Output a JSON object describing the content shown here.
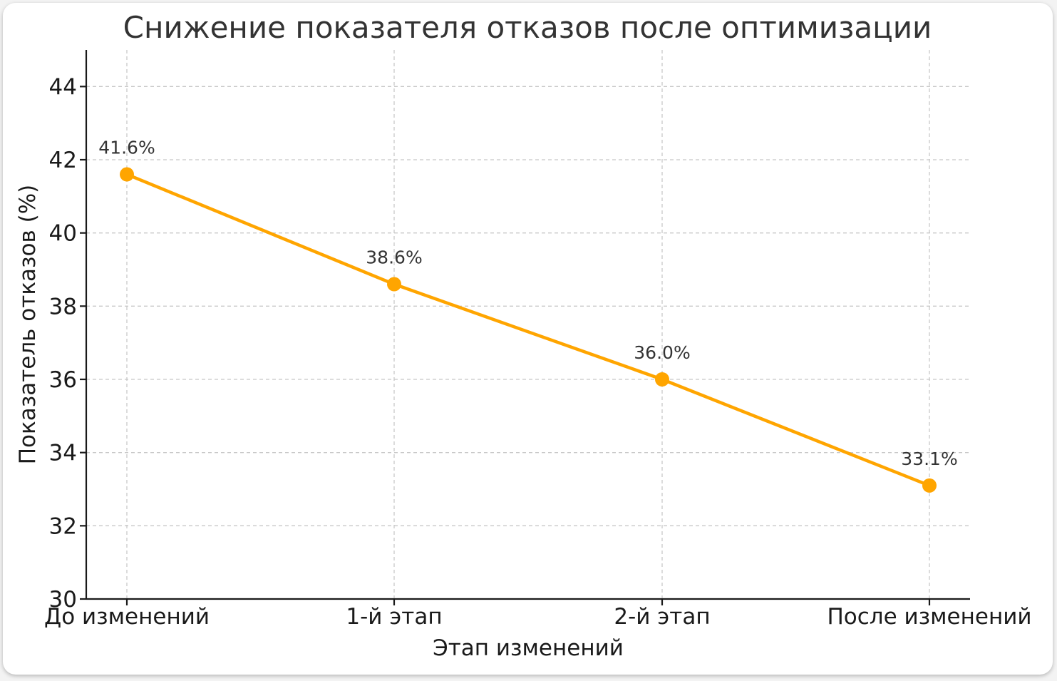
{
  "chart_data": {
    "type": "line",
    "title": "Снижение показателя отказов после оптимизации",
    "xlabel": "Этап изменений",
    "ylabel": "Показатель отказов (%)",
    "categories": [
      "До изменений",
      "1-й этап",
      "2-й этап",
      "После изменений"
    ],
    "series": [
      {
        "values": [
          41.6,
          38.6,
          36.0,
          33.1
        ]
      }
    ],
    "data_labels": [
      "41.6%",
      "38.6%",
      "36.0%",
      "33.1%"
    ],
    "ylim": [
      30,
      45
    ],
    "yticks": [
      30,
      32,
      34,
      36,
      38,
      40,
      42,
      44
    ],
    "grid": true,
    "color": "#FFA500"
  }
}
